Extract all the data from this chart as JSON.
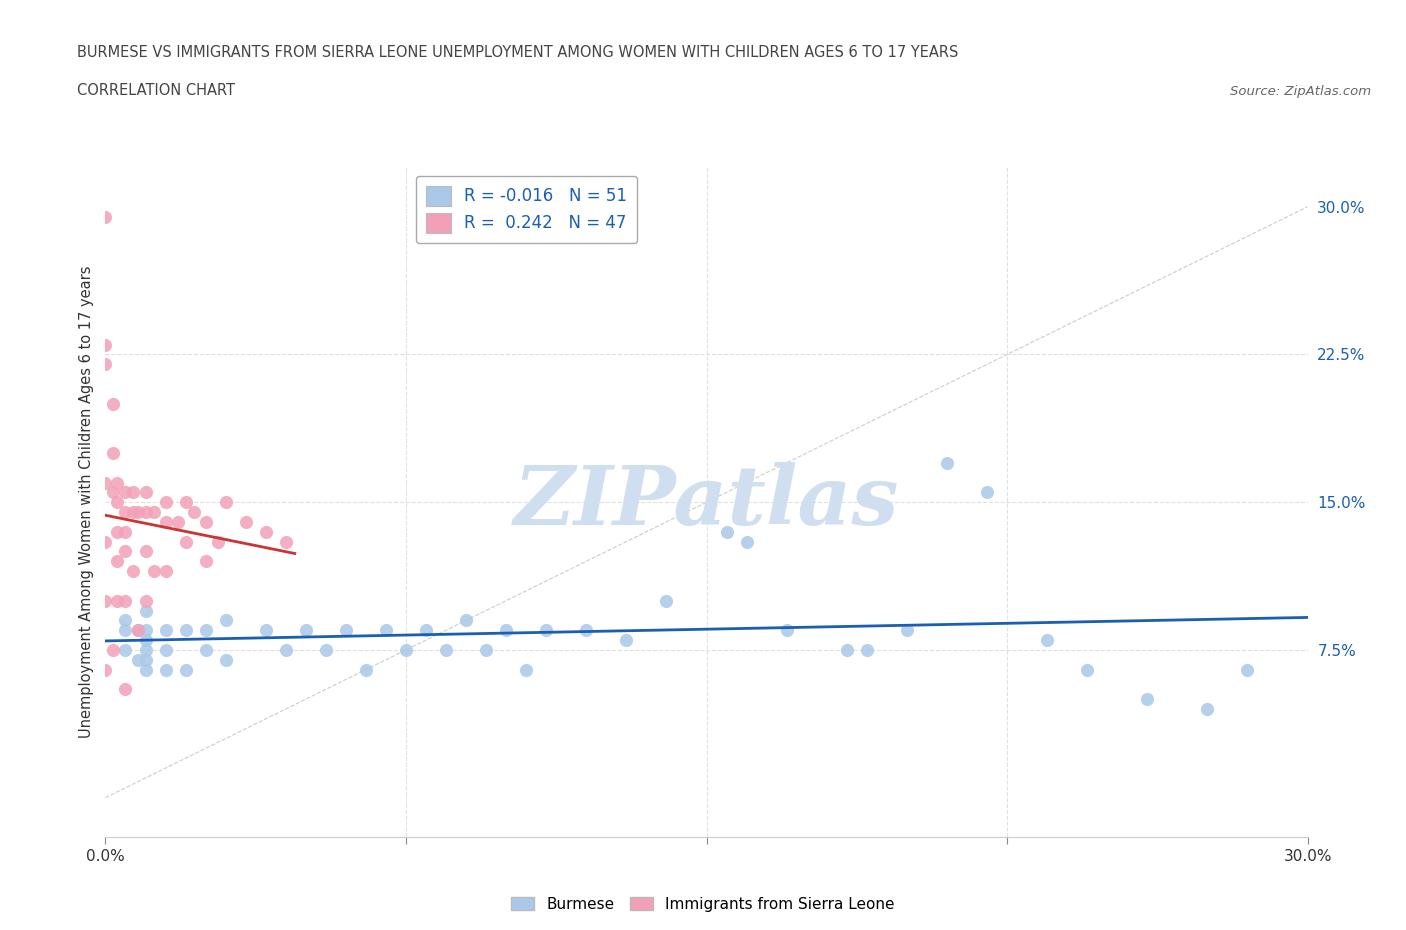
{
  "title_line1": "BURMESE VS IMMIGRANTS FROM SIERRA LEONE UNEMPLOYMENT AMONG WOMEN WITH CHILDREN AGES 6 TO 17 YEARS",
  "title_line2": "CORRELATION CHART",
  "source_text": "Source: ZipAtlas.com",
  "ylabel": "Unemployment Among Women with Children Ages 6 to 17 years",
  "xmin": 0.0,
  "xmax": 0.3,
  "ymin": -0.02,
  "ymax": 0.32,
  "burmese_R": -0.016,
  "burmese_N": 51,
  "sierra_leone_R": 0.242,
  "sierra_leone_N": 47,
  "burmese_color": "#aac8e8",
  "sierra_leone_color": "#f2a0b8",
  "burmese_line_color": "#1a5fb4",
  "sierra_leone_line_color": "#cc3333",
  "grid_color": "#e0e0e0",
  "watermark_text": "ZIPatlas",
  "watermark_color": "#d0dff0",
  "burmese_x": [
    0.005,
    0.005,
    0.005,
    0.008,
    0.008,
    0.01,
    0.01,
    0.01,
    0.01,
    0.01,
    0.01,
    0.015,
    0.015,
    0.015,
    0.02,
    0.02,
    0.025,
    0.025,
    0.03,
    0.03,
    0.04,
    0.045,
    0.05,
    0.055,
    0.06,
    0.065,
    0.07,
    0.075,
    0.08,
    0.085,
    0.09,
    0.095,
    0.1,
    0.105,
    0.11,
    0.12,
    0.13,
    0.14,
    0.155,
    0.16,
    0.17,
    0.185,
    0.19,
    0.2,
    0.21,
    0.22,
    0.235,
    0.245,
    0.26,
    0.275,
    0.285
  ],
  "burmese_y": [
    0.09,
    0.085,
    0.075,
    0.085,
    0.07,
    0.095,
    0.085,
    0.08,
    0.075,
    0.07,
    0.065,
    0.085,
    0.075,
    0.065,
    0.085,
    0.065,
    0.085,
    0.075,
    0.09,
    0.07,
    0.085,
    0.075,
    0.085,
    0.075,
    0.085,
    0.065,
    0.085,
    0.075,
    0.085,
    0.075,
    0.09,
    0.075,
    0.085,
    0.065,
    0.085,
    0.085,
    0.08,
    0.1,
    0.135,
    0.13,
    0.085,
    0.075,
    0.075,
    0.085,
    0.17,
    0.155,
    0.08,
    0.065,
    0.05,
    0.045,
    0.065
  ],
  "sierra_leone_x": [
    0.0,
    0.0,
    0.0,
    0.0,
    0.0,
    0.0,
    0.0,
    0.002,
    0.002,
    0.002,
    0.002,
    0.003,
    0.003,
    0.003,
    0.003,
    0.003,
    0.005,
    0.005,
    0.005,
    0.005,
    0.005,
    0.005,
    0.007,
    0.007,
    0.007,
    0.008,
    0.008,
    0.01,
    0.01,
    0.01,
    0.01,
    0.012,
    0.012,
    0.015,
    0.015,
    0.015,
    0.018,
    0.02,
    0.02,
    0.022,
    0.025,
    0.025,
    0.028,
    0.03,
    0.035,
    0.04,
    0.045
  ],
  "sierra_leone_y": [
    0.295,
    0.23,
    0.22,
    0.16,
    0.13,
    0.1,
    0.065,
    0.2,
    0.175,
    0.155,
    0.075,
    0.16,
    0.15,
    0.135,
    0.12,
    0.1,
    0.155,
    0.145,
    0.135,
    0.125,
    0.1,
    0.055,
    0.155,
    0.145,
    0.115,
    0.145,
    0.085,
    0.155,
    0.145,
    0.125,
    0.1,
    0.145,
    0.115,
    0.15,
    0.14,
    0.115,
    0.14,
    0.15,
    0.13,
    0.145,
    0.14,
    0.12,
    0.13,
    0.15,
    0.14,
    0.135,
    0.13
  ]
}
